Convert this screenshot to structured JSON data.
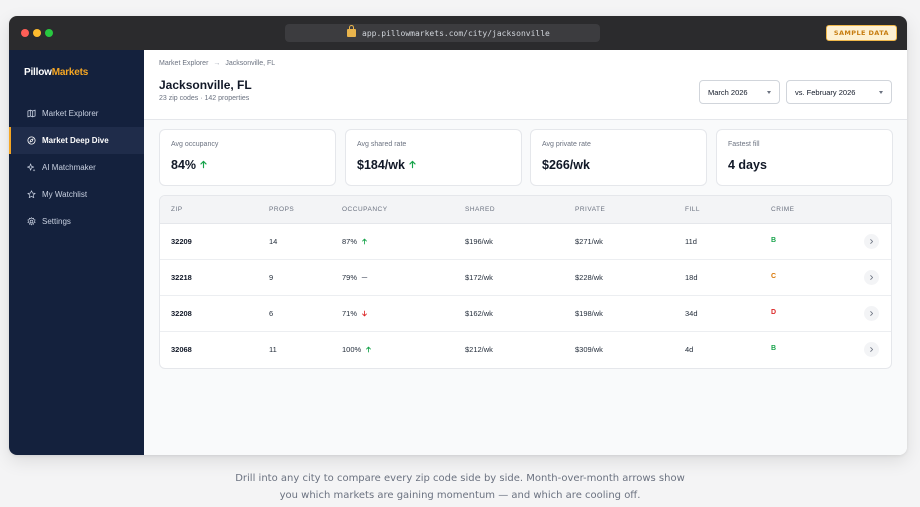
{
  "browser": {
    "url": "app.pillowmarkets.com/city/jacksonville",
    "badge": "SAMPLE DATA",
    "lock_icon": "lock-icon"
  },
  "sidebar": {
    "brand_part1": "Pillow",
    "brand_part2": "Markets",
    "accent_color": "#f5a623",
    "items": [
      {
        "label": "Market Explorer",
        "icon": "map-icon",
        "active": false
      },
      {
        "label": "Market Deep Dive",
        "icon": "compass-icon",
        "active": true
      },
      {
        "label": "AI Matchmaker",
        "icon": "sparkle-icon",
        "active": false
      },
      {
        "label": "My Watchlist",
        "icon": "star-icon",
        "active": false
      },
      {
        "label": "Settings",
        "icon": "gear-icon",
        "active": false
      }
    ]
  },
  "header": {
    "breadcrumb_root": "Market Explorer",
    "breadcrumb_sep": "→",
    "breadcrumb_current": "Jacksonville, FL",
    "title": "Jacksonville, FL",
    "subtitle": "23 zip codes · 142 properties",
    "month_select": "March 2026",
    "compare_select": "vs. February 2026"
  },
  "kpis": [
    {
      "label": "Avg occupancy",
      "value": "84%",
      "trend": "up"
    },
    {
      "label": "Avg shared rate",
      "value": "$184/wk",
      "trend": "up"
    },
    {
      "label": "Avg private rate",
      "value": "$266/wk",
      "trend": "none"
    },
    {
      "label": "Fastest fill",
      "value": "4 days",
      "trend": "none"
    }
  ],
  "table": {
    "columns": [
      "ZIP",
      "PROPS",
      "OCCUPANCY",
      "SHARED",
      "PRIVATE",
      "FILL",
      "CRIME"
    ],
    "rows": [
      {
        "zip": "32209",
        "props": "14",
        "occupancy": "87%",
        "trend": "up",
        "shared": "$196/wk",
        "private": "$271/wk",
        "fill": "11d",
        "crime": "B"
      },
      {
        "zip": "32218",
        "props": "9",
        "occupancy": "79%",
        "trend": "flat",
        "shared": "$172/wk",
        "private": "$228/wk",
        "fill": "18d",
        "crime": "C"
      },
      {
        "zip": "32208",
        "props": "6",
        "occupancy": "71%",
        "trend": "down",
        "shared": "$162/wk",
        "private": "$198/wk",
        "fill": "34d",
        "crime": "D"
      },
      {
        "zip": "32068",
        "props": "11",
        "occupancy": "100%",
        "trend": "up",
        "shared": "$212/wk",
        "private": "$309/wk",
        "fill": "4d",
        "crime": "B"
      }
    ]
  },
  "colors": {
    "trend_up": "#16a34a",
    "trend_down": "#dc2626",
    "trend_flat": "#6b7280",
    "crime_B": "#16a34a",
    "crime_C": "#d97706",
    "crime_D": "#dc2626"
  },
  "caption_line1": "Drill into any city to compare every zip code side by side. Month-over-month arrows show",
  "caption_line2": "you which markets are gaining momentum — and which are cooling off."
}
